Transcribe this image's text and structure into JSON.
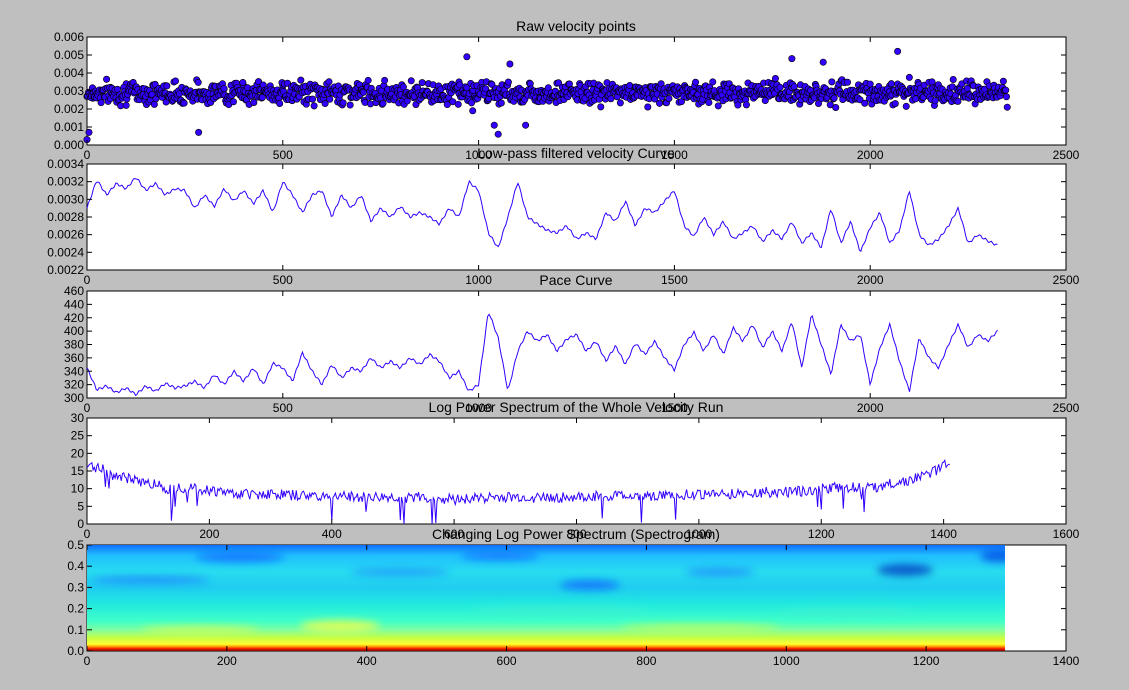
{
  "figure": {
    "background": "#bfbfbf",
    "line_color": "#3300ff",
    "marker_color": "#3300ff"
  },
  "chart_data": [
    {
      "type": "scatter",
      "title": "Raw velocity points",
      "xlim": [
        0,
        2500
      ],
      "ylim": [
        0.0,
        0.006
      ],
      "xticks": [
        "0",
        "500",
        "1000",
        "1500",
        "2000",
        "2500"
      ],
      "yticks": [
        "0.000",
        "0.001",
        "0.002",
        "0.003",
        "0.004",
        "0.005",
        "0.006"
      ],
      "grid": false,
      "n_points": 2350,
      "mean": 0.0029,
      "spread": 0.0005,
      "x": [
        0,
        5,
        15,
        30,
        60,
        100,
        150,
        200,
        250,
        285,
        300,
        350,
        400,
        450,
        500,
        550,
        600,
        650,
        700,
        750,
        800,
        850,
        900,
        950,
        970,
        985,
        1000,
        1020,
        1040,
        1050,
        1080,
        1100,
        1120,
        1150,
        1200,
        1250,
        1300,
        1350,
        1400,
        1450,
        1500,
        1550,
        1600,
        1700,
        1750,
        1800,
        1880,
        1900,
        1950,
        2000,
        2050,
        2070,
        2100,
        2150,
        2200,
        2250,
        2300,
        2350
      ],
      "y": [
        0.0003,
        0.0007,
        0.0026,
        0.003,
        0.0032,
        0.0034,
        0.0031,
        0.0033,
        0.0031,
        0.0007,
        0.0028,
        0.0031,
        0.0033,
        0.003,
        0.0033,
        0.0029,
        0.0031,
        0.003,
        0.0029,
        0.0031,
        0.0031,
        0.0027,
        0.0031,
        0.0035,
        0.0049,
        0.0019,
        0.0028,
        0.003,
        0.0011,
        0.0006,
        0.0045,
        0.0026,
        0.0011,
        0.0029,
        0.0028,
        0.0026,
        0.0029,
        0.0031,
        0.0028,
        0.0027,
        0.0031,
        0.003,
        0.0027,
        0.003,
        0.0028,
        0.0048,
        0.0046,
        0.0028,
        0.0027,
        0.003,
        0.0033,
        0.0052,
        0.003,
        0.0027,
        0.0026,
        0.0029,
        0.0029,
        0.0021
      ]
    },
    {
      "type": "line",
      "title": "Low-pass filtered velocity Curve",
      "xlim": [
        0,
        2500
      ],
      "ylim": [
        0.0022,
        0.0034
      ],
      "xticks": [
        "0",
        "500",
        "1000",
        "1500",
        "2000",
        "2500"
      ],
      "yticks": [
        "0.0022",
        "0.0024",
        "0.0026",
        "0.0028",
        "0.0030",
        "0.0032",
        "0.0034"
      ],
      "grid": false,
      "x": [
        0,
        25,
        50,
        75,
        100,
        125,
        150,
        175,
        200,
        225,
        250,
        275,
        300,
        325,
        350,
        375,
        400,
        425,
        450,
        475,
        500,
        525,
        550,
        575,
        600,
        625,
        650,
        675,
        700,
        725,
        750,
        775,
        800,
        825,
        850,
        875,
        900,
        925,
        950,
        975,
        1000,
        1025,
        1050,
        1075,
        1100,
        1125,
        1150,
        1175,
        1200,
        1225,
        1250,
        1275,
        1300,
        1325,
        1350,
        1375,
        1400,
        1425,
        1450,
        1475,
        1500,
        1525,
        1550,
        1575,
        1600,
        1625,
        1650,
        1675,
        1700,
        1725,
        1750,
        1775,
        1800,
        1825,
        1850,
        1875,
        1900,
        1925,
        1950,
        1975,
        2000,
        2025,
        2050,
        2075,
        2100,
        2125,
        2150,
        2175,
        2200,
        2225,
        2250,
        2275,
        2300,
        2325
      ],
      "y": [
        0.0029,
        0.00322,
        0.00305,
        0.00318,
        0.00312,
        0.00325,
        0.0031,
        0.00318,
        0.00305,
        0.00312,
        0.0031,
        0.0029,
        0.00305,
        0.00292,
        0.00312,
        0.00298,
        0.0031,
        0.00295,
        0.0031,
        0.00285,
        0.0032,
        0.00305,
        0.00285,
        0.00305,
        0.0031,
        0.0028,
        0.00305,
        0.0029,
        0.00305,
        0.00275,
        0.0029,
        0.0028,
        0.00292,
        0.0028,
        0.00285,
        0.0028,
        0.00272,
        0.0029,
        0.0028,
        0.0032,
        0.0031,
        0.00262,
        0.00245,
        0.0028,
        0.0032,
        0.0028,
        0.00272,
        0.00265,
        0.00262,
        0.0027,
        0.00255,
        0.00262,
        0.00255,
        0.00285,
        0.00275,
        0.00298,
        0.0027,
        0.0029,
        0.00285,
        0.00298,
        0.0031,
        0.0027,
        0.00258,
        0.0028,
        0.0026,
        0.00275,
        0.00255,
        0.00262,
        0.0027,
        0.00252,
        0.00265,
        0.00255,
        0.00275,
        0.0025,
        0.00262,
        0.00245,
        0.0029,
        0.0025,
        0.00275,
        0.0024,
        0.00268,
        0.00285,
        0.0025,
        0.00265,
        0.0031,
        0.0026,
        0.00248,
        0.00255,
        0.0027,
        0.0029,
        0.0025,
        0.0026,
        0.00253,
        0.00248
      ]
    },
    {
      "type": "line",
      "title": "Pace  Curve",
      "xlim": [
        0,
        2500
      ],
      "ylim": [
        300,
        460
      ],
      "xticks": [
        "0",
        "500",
        "1000",
        "1500",
        "2000",
        "2500"
      ],
      "yticks": [
        "300",
        "320",
        "340",
        "360",
        "380",
        "400",
        "420",
        "440",
        "460"
      ],
      "grid": false,
      "x": [
        0,
        25,
        50,
        75,
        100,
        125,
        150,
        175,
        200,
        225,
        250,
        275,
        300,
        325,
        350,
        375,
        400,
        425,
        450,
        475,
        500,
        525,
        550,
        575,
        600,
        625,
        650,
        675,
        700,
        725,
        750,
        775,
        800,
        825,
        850,
        875,
        900,
        925,
        950,
        975,
        1000,
        1025,
        1050,
        1075,
        1100,
        1125,
        1150,
        1175,
        1200,
        1225,
        1250,
        1275,
        1300,
        1325,
        1350,
        1375,
        1400,
        1425,
        1450,
        1475,
        1500,
        1525,
        1550,
        1575,
        1600,
        1625,
        1650,
        1675,
        1700,
        1725,
        1750,
        1775,
        1800,
        1825,
        1850,
        1875,
        1900,
        1925,
        1950,
        1975,
        2000,
        2025,
        2050,
        2075,
        2100,
        2125,
        2150,
        2175,
        2200,
        2225,
        2250,
        2275,
        2300,
        2325
      ],
      "y": [
        345,
        312,
        318,
        308,
        315,
        305,
        318,
        310,
        322,
        315,
        318,
        325,
        315,
        335,
        320,
        340,
        325,
        345,
        320,
        352,
        345,
        325,
        368,
        340,
        320,
        350,
        330,
        345,
        340,
        360,
        345,
        355,
        345,
        360,
        350,
        365,
        355,
        330,
        340,
        310,
        320,
        430,
        390,
        310,
        370,
        400,
        385,
        395,
        370,
        388,
        395,
        370,
        385,
        355,
        378,
        350,
        382,
        365,
        385,
        360,
        342,
        380,
        398,
        370,
        395,
        365,
        405,
        385,
        410,
        375,
        400,
        370,
        415,
        345,
        425,
        380,
        335,
        410,
        385,
        395,
        320,
        375,
        410,
        355,
        310,
        390,
        360,
        345,
        380,
        410,
        375,
        395,
        385,
        400
      ]
    },
    {
      "type": "line",
      "title": "Log Power Spectrum of the Whole Velocity Run",
      "xlim": [
        0,
        1600
      ],
      "ylim": [
        0,
        30
      ],
      "xticks": [
        "0",
        "200",
        "400",
        "600",
        "800",
        "1000",
        "1200",
        "1400",
        "1600"
      ],
      "yticks": [
        "0",
        "5",
        "10",
        "15",
        "20",
        "25",
        "30"
      ],
      "grid": false,
      "x": [
        0,
        20,
        40,
        60,
        80,
        100,
        120,
        130,
        150,
        175,
        200,
        225,
        250,
        300,
        350,
        400,
        450,
        500,
        550,
        600,
        650,
        700,
        750,
        800,
        850,
        900,
        950,
        1000,
        1050,
        1100,
        1150,
        1200,
        1250,
        1280,
        1300,
        1350,
        1380,
        1400,
        1410
      ],
      "y": [
        16.5,
        16,
        14,
        13,
        12.5,
        11.5,
        11,
        10,
        10.5,
        10,
        9.5,
        9,
        8.5,
        8.5,
        8,
        8,
        7.5,
        7.5,
        7.5,
        7,
        7.5,
        7.5,
        7.5,
        7.5,
        8,
        8,
        8,
        8.5,
        8.5,
        9,
        9,
        10,
        10.5,
        10,
        11,
        12.5,
        14.5,
        16.5,
        18
      ],
      "noise": 1.5,
      "n_points": 1410
    },
    {
      "type": "heatmap",
      "title": "Changing Log Power Spectrum (Spectrogram)",
      "xlim": [
        0,
        1400
      ],
      "ylim": [
        0.0,
        0.5
      ],
      "xticks": [
        "0",
        "200",
        "400",
        "600",
        "800",
        "1000",
        "1200",
        "1400"
      ],
      "yticks": [
        "0.0",
        "0.1",
        "0.2",
        "0.3",
        "0.4",
        "0.5"
      ],
      "grid": false,
      "data_x_end": 1310,
      "colormap": "jet",
      "low_band_value": 1.0
    }
  ]
}
